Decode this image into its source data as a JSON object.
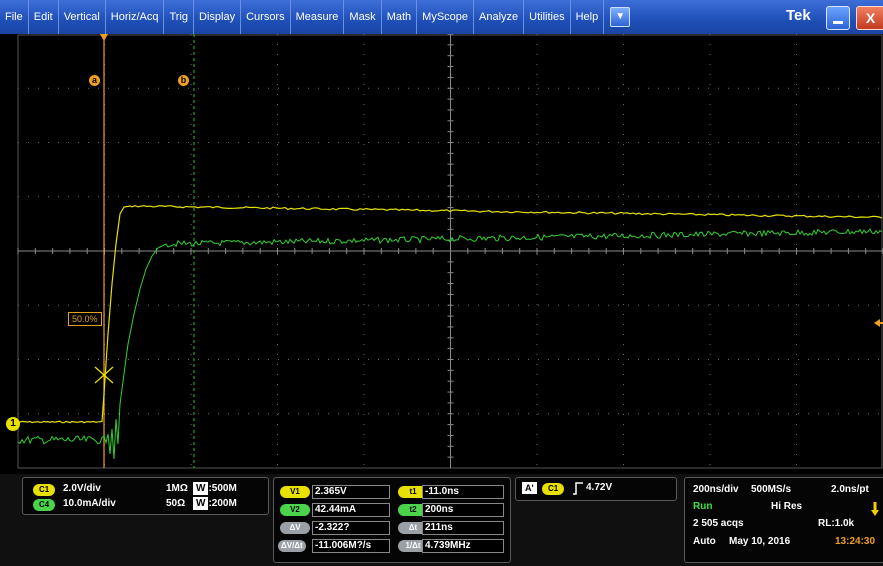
{
  "menubar": {
    "items": [
      "File",
      "Edit",
      "Vertical",
      "Horiz/Acq",
      "Trig",
      "Display",
      "Cursors",
      "Measure",
      "Mask",
      "Math",
      "MyScope",
      "Analyze",
      "Utilities",
      "Help"
    ],
    "brand": "Tek",
    "close_glyph": "X",
    "dropdown_glyph": "▼"
  },
  "display": {
    "cursor_a_label": "a",
    "cursor_b_label": "b",
    "ref_level": "50.0%",
    "ch1_marker": "1",
    "colors": {
      "ch1": "#e8e000",
      "ch4": "#30d030",
      "cursor": "#f0a020",
      "grid": "#6a6a6a"
    }
  },
  "channels": [
    {
      "pill": "C1",
      "scale": "2.0V/div",
      "impedance": "1MΩ",
      "bw_label": "W",
      "bw_value": ":500M"
    },
    {
      "pill": "C4",
      "scale": "10.0mA/div",
      "impedance": "50Ω",
      "bw_label": "W",
      "bw_value": ":200M"
    }
  ],
  "cursors": {
    "v1": {
      "label": "V1",
      "value": "2.365V"
    },
    "v2": {
      "label": "V2",
      "value": "42.44mA"
    },
    "dv": {
      "label": "ΔV",
      "value": "-2.322?"
    },
    "dvdt": {
      "label": "ΔV/Δt",
      "value": "-11.006M?/s"
    },
    "t1": {
      "label": "t1",
      "value": "-11.0ns"
    },
    "t2": {
      "label": "t2",
      "value": "200ns"
    },
    "dt": {
      "label": "Δt",
      "value": "211ns"
    },
    "inv_dt": {
      "label": "1/Δt",
      "value": "4.739MHz"
    }
  },
  "trigger": {
    "mode_label": "A'",
    "source": "C1",
    "level": "4.72V"
  },
  "acquisition": {
    "timebase": "200ns/div",
    "sample_rate": "500MS/s",
    "resolution": "2.0ns/pt",
    "state": "Run",
    "mode": "Hi Res",
    "acqs": "2 505 acqs",
    "record_length": "RL:1.0k",
    "trigger_mode": "Auto",
    "date": "May 10, 2016",
    "time": "13:24:30"
  }
}
